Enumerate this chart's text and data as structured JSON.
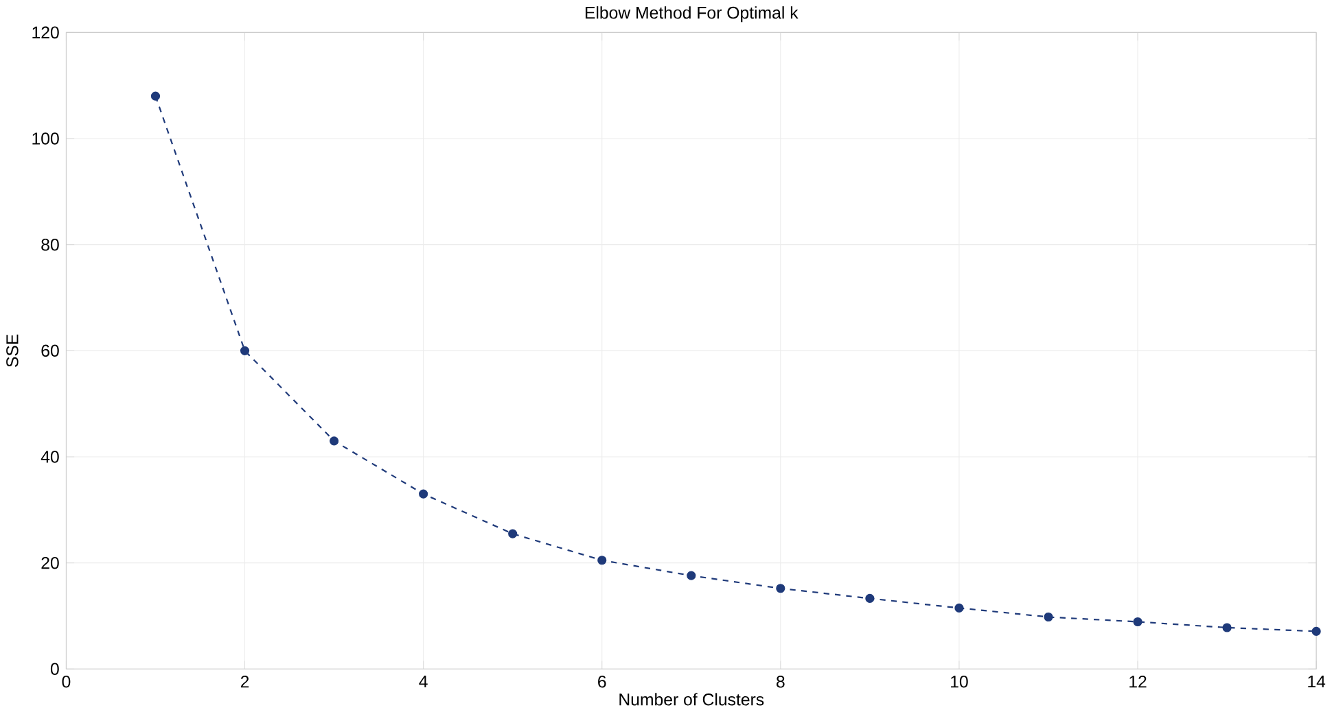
{
  "chart_data": {
    "type": "line",
    "title": "Elbow Method For Optimal k",
    "xlabel": "Number of Clusters",
    "ylabel": "SSE",
    "x": [
      1,
      2,
      3,
      4,
      5,
      6,
      7,
      8,
      9,
      10,
      11,
      12,
      13,
      14
    ],
    "series": [
      {
        "color": "#1f3a7a",
        "values": [
          108,
          60,
          43,
          33,
          25.5,
          20.5,
          17.6,
          15.2,
          13.3,
          11.5,
          9.8,
          8.9,
          7.8,
          7.1
        ]
      }
    ],
    "xlim": [
      0,
      14
    ],
    "xticks": [
      0,
      2,
      4,
      6,
      8,
      10,
      12,
      14
    ],
    "ylim": [
      0,
      120
    ],
    "yticks": [
      0,
      20,
      40,
      60,
      80,
      100,
      120
    ],
    "grid": true,
    "marker": "circle",
    "line_style": "dashed"
  }
}
